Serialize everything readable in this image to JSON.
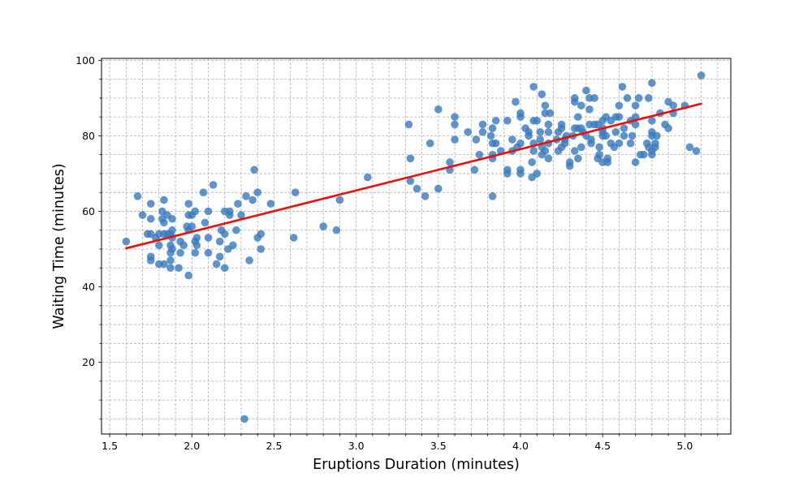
{
  "chart_data": {
    "type": "scatter",
    "title": "",
    "xlabel": "Eruptions Duration (minutes)",
    "ylabel": "Waiting Time (minutes)",
    "xlim": [
      1.45,
      5.28
    ],
    "ylim": [
      1,
      100.5
    ],
    "x_ticks": [
      "1.5",
      "2.0",
      "2.5",
      "3.0",
      "3.5",
      "4.0",
      "4.5",
      "5.0"
    ],
    "y_ticks": [
      "20",
      "40",
      "60",
      "80",
      "100"
    ],
    "grid": true,
    "point_color": "#3a7bbf",
    "fit_line_color": "#e8120c",
    "series": [
      {
        "points": [
          [
            1.6,
            52
          ],
          [
            1.67,
            64
          ],
          [
            1.7,
            59
          ],
          [
            1.73,
            54
          ],
          [
            1.75,
            54
          ],
          [
            1.75,
            62
          ],
          [
            1.75,
            58
          ],
          [
            1.75,
            48
          ],
          [
            1.75,
            47
          ],
          [
            1.78,
            53
          ],
          [
            1.8,
            51
          ],
          [
            1.8,
            54
          ],
          [
            1.8,
            46
          ],
          [
            1.82,
            60
          ],
          [
            1.82,
            58
          ],
          [
            1.83,
            54
          ],
          [
            1.83,
            57
          ],
          [
            1.83,
            63
          ],
          [
            1.83,
            46
          ],
          [
            1.85,
            54
          ],
          [
            1.85,
            59
          ],
          [
            1.87,
            54
          ],
          [
            1.87,
            51
          ],
          [
            1.87,
            49
          ],
          [
            1.87,
            47
          ],
          [
            1.87,
            45
          ],
          [
            1.88,
            58
          ],
          [
            1.88,
            55
          ],
          [
            1.88,
            50
          ],
          [
            1.88,
            53
          ],
          [
            1.92,
            45
          ],
          [
            1.93,
            49
          ],
          [
            1.93,
            52
          ],
          [
            1.95,
            51
          ],
          [
            1.97,
            56
          ],
          [
            1.98,
            55
          ],
          [
            1.98,
            62
          ],
          [
            1.98,
            59
          ],
          [
            1.98,
            43
          ],
          [
            2.0,
            56
          ],
          [
            2.0,
            59
          ],
          [
            2.02,
            60
          ],
          [
            2.02,
            52
          ],
          [
            2.02,
            49
          ],
          [
            2.03,
            51
          ],
          [
            2.03,
            53
          ],
          [
            2.07,
            65
          ],
          [
            2.08,
            57
          ],
          [
            2.1,
            60
          ],
          [
            2.1,
            53
          ],
          [
            2.1,
            49
          ],
          [
            2.13,
            67
          ],
          [
            2.15,
            46
          ],
          [
            2.17,
            52
          ],
          [
            2.17,
            48
          ],
          [
            2.18,
            55
          ],
          [
            2.2,
            54
          ],
          [
            2.2,
            60
          ],
          [
            2.2,
            45
          ],
          [
            2.22,
            50
          ],
          [
            2.23,
            59
          ],
          [
            2.23,
            60
          ],
          [
            2.25,
            51
          ],
          [
            2.27,
            55
          ],
          [
            2.28,
            62
          ],
          [
            2.3,
            59
          ],
          [
            2.32,
            5
          ],
          [
            2.33,
            64
          ],
          [
            2.35,
            47
          ],
          [
            2.37,
            63
          ],
          [
            2.38,
            71
          ],
          [
            2.4,
            65
          ],
          [
            2.4,
            53
          ],
          [
            2.42,
            50
          ],
          [
            2.42,
            54
          ],
          [
            2.48,
            62
          ],
          [
            2.62,
            53
          ],
          [
            2.63,
            65
          ],
          [
            2.8,
            56
          ],
          [
            2.88,
            55
          ],
          [
            2.9,
            63
          ],
          [
            3.07,
            69
          ],
          [
            3.32,
            83
          ],
          [
            3.33,
            68
          ],
          [
            3.33,
            74
          ],
          [
            3.37,
            66
          ],
          [
            3.42,
            64
          ],
          [
            3.45,
            78
          ],
          [
            3.5,
            87
          ],
          [
            3.5,
            66
          ],
          [
            3.57,
            71
          ],
          [
            3.57,
            73
          ],
          [
            3.6,
            85
          ],
          [
            3.6,
            83
          ],
          [
            3.6,
            79
          ],
          [
            3.68,
            81
          ],
          [
            3.72,
            71
          ],
          [
            3.73,
            79
          ],
          [
            3.75,
            75
          ],
          [
            3.77,
            83
          ],
          [
            3.77,
            81
          ],
          [
            3.82,
            80
          ],
          [
            3.83,
            82
          ],
          [
            3.83,
            78
          ],
          [
            3.83,
            75
          ],
          [
            3.83,
            74
          ],
          [
            3.83,
            64
          ],
          [
            3.85,
            84
          ],
          [
            3.85,
            78
          ],
          [
            3.88,
            76
          ],
          [
            3.92,
            84
          ],
          [
            3.92,
            71
          ],
          [
            3.92,
            70
          ],
          [
            3.95,
            79
          ],
          [
            3.95,
            76
          ],
          [
            3.97,
            89
          ],
          [
            3.98,
            77
          ],
          [
            4.0,
            86
          ],
          [
            4.0,
            85
          ],
          [
            4.0,
            78
          ],
          [
            4.0,
            71
          ],
          [
            4.0,
            70
          ],
          [
            4.03,
            82
          ],
          [
            4.05,
            81
          ],
          [
            4.05,
            80
          ],
          [
            4.07,
            73
          ],
          [
            4.07,
            69
          ],
          [
            4.08,
            84
          ],
          [
            4.08,
            78
          ],
          [
            4.08,
            76
          ],
          [
            4.08,
            93
          ],
          [
            4.1,
            84
          ],
          [
            4.1,
            70
          ],
          [
            4.12,
            81
          ],
          [
            4.12,
            79
          ],
          [
            4.13,
            91
          ],
          [
            4.13,
            77
          ],
          [
            4.13,
            75
          ],
          [
            4.15,
            86
          ],
          [
            4.15,
            88
          ],
          [
            4.15,
            76
          ],
          [
            4.17,
            83
          ],
          [
            4.17,
            81
          ],
          [
            4.17,
            78
          ],
          [
            4.17,
            74
          ],
          [
            4.18,
            86
          ],
          [
            4.22,
            79
          ],
          [
            4.23,
            81
          ],
          [
            4.23,
            76
          ],
          [
            4.25,
            83
          ],
          [
            4.25,
            82
          ],
          [
            4.25,
            77
          ],
          [
            4.27,
            78
          ],
          [
            4.27,
            79
          ],
          [
            4.28,
            80
          ],
          [
            4.3,
            73
          ],
          [
            4.3,
            72
          ],
          [
            4.32,
            80
          ],
          [
            4.33,
            90
          ],
          [
            4.33,
            89
          ],
          [
            4.33,
            82
          ],
          [
            4.33,
            76
          ],
          [
            4.35,
            82
          ],
          [
            4.35,
            85
          ],
          [
            4.35,
            74
          ],
          [
            4.37,
            82
          ],
          [
            4.37,
            88
          ],
          [
            4.37,
            77
          ],
          [
            4.38,
            81
          ],
          [
            4.4,
            92
          ],
          [
            4.4,
            80
          ],
          [
            4.42,
            90
          ],
          [
            4.42,
            87
          ],
          [
            4.42,
            83
          ],
          [
            4.43,
            79
          ],
          [
            4.43,
            78
          ],
          [
            4.45,
            83
          ],
          [
            4.45,
            90
          ],
          [
            4.47,
            74
          ],
          [
            4.47,
            83
          ],
          [
            4.48,
            77
          ],
          [
            4.48,
            75
          ],
          [
            4.5,
            84
          ],
          [
            4.5,
            82
          ],
          [
            4.5,
            81
          ],
          [
            4.5,
            80
          ],
          [
            4.5,
            73
          ],
          [
            4.52,
            85
          ],
          [
            4.52,
            80
          ],
          [
            4.53,
            74
          ],
          [
            4.53,
            73
          ],
          [
            4.55,
            84
          ],
          [
            4.55,
            78
          ],
          [
            4.57,
            77
          ],
          [
            4.58,
            85
          ],
          [
            4.58,
            81
          ],
          [
            4.6,
            88
          ],
          [
            4.6,
            78
          ],
          [
            4.6,
            85
          ],
          [
            4.62,
            93
          ],
          [
            4.63,
            82
          ],
          [
            4.63,
            80
          ],
          [
            4.65,
            90
          ],
          [
            4.67,
            84
          ],
          [
            4.67,
            78
          ],
          [
            4.68,
            80
          ],
          [
            4.7,
            88
          ],
          [
            4.7,
            73
          ],
          [
            4.7,
            83
          ],
          [
            4.7,
            85
          ],
          [
            4.72,
            90
          ],
          [
            4.73,
            75
          ],
          [
            4.75,
            75
          ],
          [
            4.77,
            78
          ],
          [
            4.78,
            90
          ],
          [
            4.78,
            77
          ],
          [
            4.8,
            94
          ],
          [
            4.8,
            84
          ],
          [
            4.8,
            81
          ],
          [
            4.8,
            80
          ],
          [
            4.8,
            76
          ],
          [
            4.8,
            75
          ],
          [
            4.82,
            77
          ],
          [
            4.82,
            78
          ],
          [
            4.83,
            80
          ],
          [
            4.85,
            86
          ],
          [
            4.88,
            83
          ],
          [
            4.9,
            89
          ],
          [
            4.9,
            82
          ],
          [
            4.93,
            88
          ],
          [
            4.93,
            86
          ],
          [
            5.0,
            88
          ],
          [
            5.03,
            77
          ],
          [
            5.07,
            76
          ],
          [
            5.1,
            96
          ]
        ]
      }
    ],
    "regression_line": {
      "x": [
        1.6,
        5.1
      ],
      "y": [
        50.2,
        88.5
      ]
    }
  }
}
